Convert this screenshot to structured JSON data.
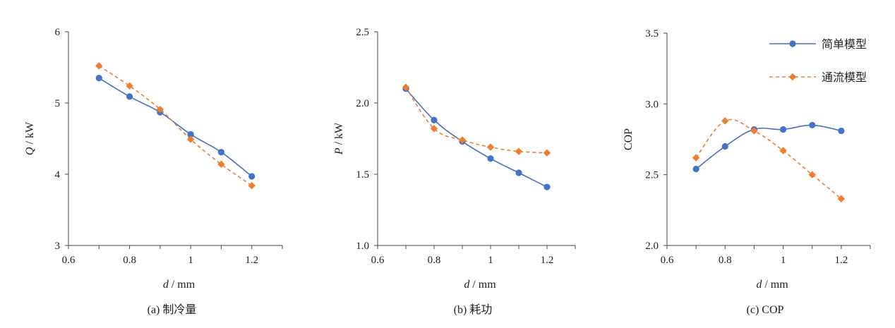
{
  "chart_data": [
    {
      "type": "line",
      "caption": "(a) 制冷量",
      "xlabel": {
        "var": "d",
        "unit": " / mm"
      },
      "ylabel": {
        "var": "Q",
        "unit": " / kW"
      },
      "xlim": [
        0.6,
        1.3
      ],
      "ylim": [
        3,
        6
      ],
      "xticks": [
        0.6,
        0.8,
        1,
        1.2
      ],
      "xtick_labels": [
        "0.6",
        "0.8",
        "1",
        "1.2"
      ],
      "yticks": [
        3,
        4,
        5,
        6
      ],
      "ytick_labels": [
        "3",
        "4",
        "5",
        "6"
      ],
      "x": [
        0.7,
        0.8,
        0.9,
        1.0,
        1.1,
        1.2
      ],
      "series": [
        {
          "name": "简单模型",
          "values": [
            5.35,
            5.09,
            4.87,
            4.56,
            4.31,
            3.97
          ]
        },
        {
          "name": "通流模型",
          "values": [
            5.52,
            5.24,
            4.91,
            4.49,
            4.14,
            3.84
          ]
        }
      ],
      "grid": false,
      "legend": "none"
    },
    {
      "type": "line",
      "caption": "(b) 耗功",
      "xlabel": {
        "var": "d",
        "unit": " / mm"
      },
      "ylabel": {
        "var": "P",
        "unit": " / kW"
      },
      "xlim": [
        0.6,
        1.3
      ],
      "ylim": [
        1.0,
        2.5
      ],
      "xticks": [
        0.6,
        0.8,
        1,
        1.2
      ],
      "xtick_labels": [
        "0.6",
        "0.8",
        "1",
        "1.2"
      ],
      "yticks": [
        1.0,
        1.5,
        2.0,
        2.5
      ],
      "ytick_labels": [
        "1.0",
        "1.5",
        "2.0",
        "2.5"
      ],
      "x": [
        0.7,
        0.8,
        0.9,
        1.0,
        1.1,
        1.2
      ],
      "series": [
        {
          "name": "简单模型",
          "values": [
            2.1,
            1.88,
            1.73,
            1.61,
            1.51,
            1.41
          ]
        },
        {
          "name": "通流模型",
          "values": [
            2.11,
            1.82,
            1.74,
            1.69,
            1.66,
            1.65
          ]
        }
      ],
      "grid": false,
      "legend": "none"
    },
    {
      "type": "line",
      "caption": "(c) COP",
      "xlabel": {
        "var": "d",
        "unit": " / mm"
      },
      "ylabel": {
        "var": "",
        "unit": "COP"
      },
      "xlim": [
        0.6,
        1.3
      ],
      "ylim": [
        2.0,
        3.5
      ],
      "xticks": [
        0.6,
        0.8,
        1,
        1.2
      ],
      "xtick_labels": [
        "0.6",
        "0.8",
        "1",
        "1.2"
      ],
      "yticks": [
        2.0,
        2.5,
        3.0,
        3.5
      ],
      "ytick_labels": [
        "2.0",
        "2.5",
        "3.0",
        "3.5"
      ],
      "x": [
        0.7,
        0.8,
        0.9,
        1.0,
        1.1,
        1.2
      ],
      "series": [
        {
          "name": "简单模型",
          "values": [
            2.54,
            2.7,
            2.82,
            2.82,
            2.85,
            2.81
          ]
        },
        {
          "name": "通流模型",
          "values": [
            2.62,
            2.88,
            2.81,
            2.67,
            2.5,
            2.33
          ]
        }
      ],
      "grid": false,
      "legend": "top-right"
    }
  ],
  "legend": [
    {
      "name": "简单模型",
      "style": "solid",
      "marker": "circle"
    },
    {
      "name": "通流模型",
      "style": "dashed",
      "marker": "diamond"
    }
  ],
  "colors": {
    "simple": "#4472c4",
    "flow": "#ed7d31",
    "axis": "#444444"
  }
}
